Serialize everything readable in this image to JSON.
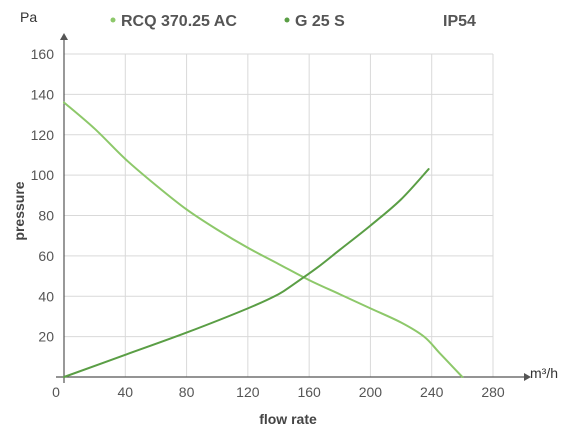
{
  "chart_data": {
    "type": "line",
    "xlabel": "flow rate",
    "ylabel": "pressure",
    "x_unit": "m³/h",
    "y_unit": "Pa",
    "rating": "IP54",
    "xlim": [
      0,
      280
    ],
    "ylim": [
      0,
      160
    ],
    "x_ticks": [
      0,
      40,
      80,
      120,
      160,
      200,
      240,
      280
    ],
    "y_ticks": [
      20,
      40,
      60,
      80,
      100,
      120,
      140,
      160
    ],
    "grid": true,
    "legend_position": "top",
    "series": [
      {
        "name": "RCQ 370.25 AC",
        "color": "#8dc86a",
        "points": [
          [
            0,
            136
          ],
          [
            20,
            123
          ],
          [
            40,
            108
          ],
          [
            60,
            95
          ],
          [
            80,
            83
          ],
          [
            100,
            73
          ],
          [
            120,
            64
          ],
          [
            140,
            56
          ],
          [
            160,
            48
          ],
          [
            180,
            41
          ],
          [
            200,
            34
          ],
          [
            220,
            27
          ],
          [
            235,
            20
          ],
          [
            245,
            12
          ],
          [
            255,
            4
          ],
          [
            260,
            0
          ]
        ]
      },
      {
        "name": "G 25 S",
        "color": "#5a9e45",
        "points": [
          [
            0,
            0
          ],
          [
            40,
            11
          ],
          [
            80,
            22
          ],
          [
            120,
            34
          ],
          [
            140,
            41
          ],
          [
            150,
            46
          ],
          [
            165,
            54
          ],
          [
            180,
            63
          ],
          [
            200,
            75
          ],
          [
            220,
            88
          ],
          [
            238,
            103
          ]
        ]
      }
    ]
  }
}
